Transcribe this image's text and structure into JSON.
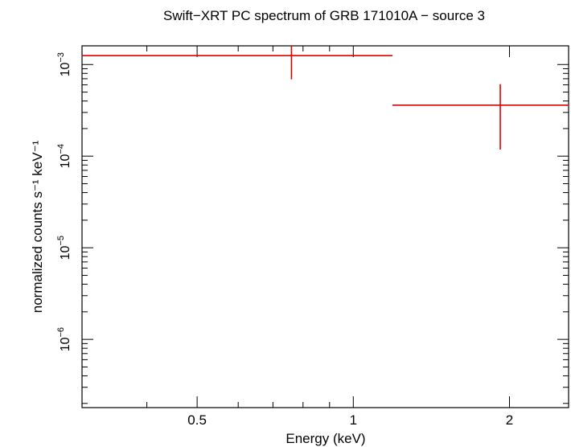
{
  "chart_data": {
    "type": "scatter",
    "title": "Swift−XRT PC spectrum of GRB 171010A − source 3",
    "xlabel": "Energy (keV)",
    "ylabel": "normalized counts s⁻¹ keV⁻¹",
    "x_scale": "log",
    "y_scale": "log",
    "xlim": [
      0.3,
      2.6
    ],
    "ylim": [
      1.8e-07,
      0.0016
    ],
    "x_ticks": [
      {
        "value": 0.5,
        "label": "0.5"
      },
      {
        "value": 1,
        "label": "1"
      },
      {
        "value": 2,
        "label": "2"
      }
    ],
    "y_ticks": [
      {
        "value": 1e-06,
        "base": "10",
        "exp": "−6"
      },
      {
        "value": 1e-05,
        "base": "10",
        "exp": "−5"
      },
      {
        "value": 0.0001,
        "base": "10",
        "exp": "−4"
      },
      {
        "value": 0.001,
        "base": "10",
        "exp": "−3"
      }
    ],
    "series": [
      {
        "color": "#e00000",
        "points": [
          {
            "x": 0.76,
            "xlo": 0.3,
            "xhi": 1.19,
            "y": 0.00125,
            "ylo": 0.00069,
            "yhi": 0.0016
          },
          {
            "x": 1.92,
            "xlo": 1.19,
            "xhi": 2.6,
            "y": 0.00036,
            "ylo": 0.000118,
            "yhi": 0.00061
          }
        ]
      }
    ]
  }
}
